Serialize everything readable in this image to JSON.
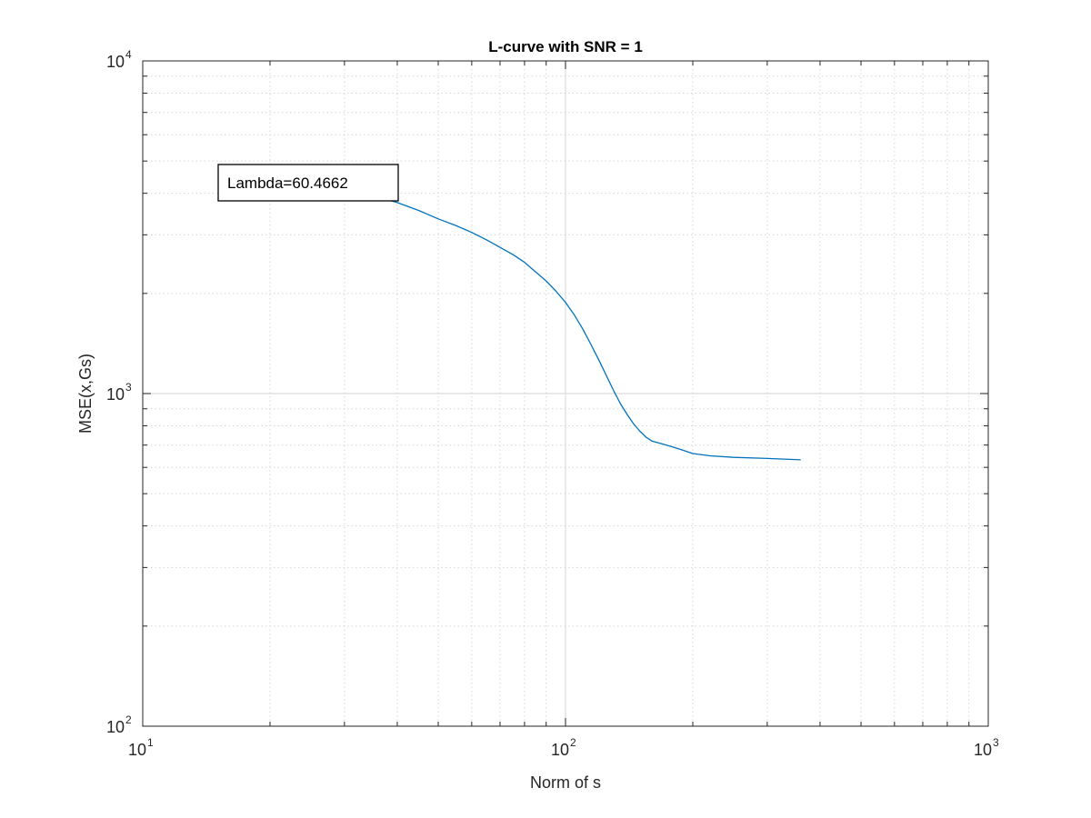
{
  "chart_data": {
    "type": "line",
    "title": "L-curve with SNR = 1",
    "xlabel": "Norm of s",
    "ylabel": "MSE(x,Gs)",
    "xscale": "log",
    "yscale": "log",
    "xlim": [
      10,
      1000
    ],
    "ylim": [
      100,
      10000
    ],
    "grid": true,
    "minor_grid": true,
    "x_ticks": [
      {
        "value": 10,
        "base": "10",
        "exp": "1"
      },
      {
        "value": 100,
        "base": "10",
        "exp": "2"
      },
      {
        "value": 1000,
        "base": "10",
        "exp": "3"
      }
    ],
    "y_ticks": [
      {
        "value": 100,
        "base": "10",
        "exp": "2"
      },
      {
        "value": 1000,
        "base": "10",
        "exp": "3"
      },
      {
        "value": 10000,
        "base": "10",
        "exp": "4"
      }
    ],
    "series": [
      {
        "color": "#0072bd",
        "points": [
          [
            24,
            4450
          ],
          [
            28,
            4300
          ],
          [
            32,
            4100
          ],
          [
            36,
            3900
          ],
          [
            40,
            3750
          ],
          [
            45,
            3550
          ],
          [
            50,
            3350
          ],
          [
            55,
            3200
          ],
          [
            60,
            3050
          ],
          [
            65,
            2900
          ],
          [
            70,
            2750
          ],
          [
            75,
            2620
          ],
          [
            80,
            2480
          ],
          [
            85,
            2320
          ],
          [
            90,
            2180
          ],
          [
            95,
            2030
          ],
          [
            100,
            1880
          ],
          [
            105,
            1720
          ],
          [
            110,
            1560
          ],
          [
            115,
            1400
          ],
          [
            120,
            1260
          ],
          [
            125,
            1130
          ],
          [
            130,
            1020
          ],
          [
            135,
            930
          ],
          [
            140,
            865
          ],
          [
            145,
            810
          ],
          [
            150,
            770
          ],
          [
            155,
            740
          ],
          [
            160,
            720
          ],
          [
            170,
            705
          ],
          [
            180,
            690
          ],
          [
            190,
            675
          ],
          [
            200,
            660
          ],
          [
            220,
            650
          ],
          [
            250,
            643
          ],
          [
            300,
            638
          ],
          [
            360,
            632
          ]
        ]
      }
    ],
    "annotation": {
      "text": "Lambda=60.4662",
      "x": 24,
      "y": 4450
    }
  }
}
